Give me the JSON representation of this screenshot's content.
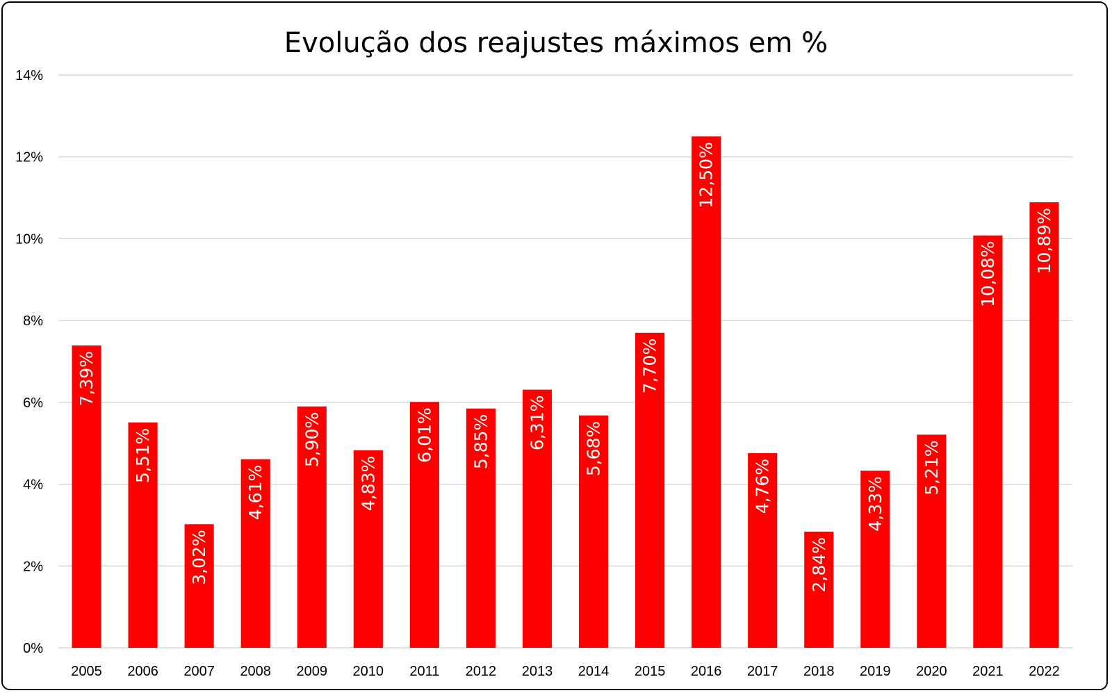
{
  "chart_data": {
    "type": "bar",
    "title": "Evolução dos reajustes máximos em %",
    "xlabel": "",
    "ylabel": "",
    "categories": [
      "2005",
      "2006",
      "2007",
      "2008",
      "2009",
      "2010",
      "2011",
      "2012",
      "2013",
      "2014",
      "2015",
      "2016",
      "2017",
      "2018",
      "2019",
      "2020",
      "2021",
      "2022"
    ],
    "values": [
      7.39,
      5.51,
      3.02,
      4.61,
      5.9,
      4.83,
      6.01,
      5.85,
      6.31,
      5.68,
      7.7,
      12.5,
      4.76,
      2.84,
      4.33,
      5.21,
      10.08,
      10.89
    ],
    "data_labels": [
      "7,39%",
      "5,51%",
      "3,02%",
      "4,61%",
      "5,90%",
      "4,83%",
      "6,01%",
      "5,85%",
      "6,31%",
      "5,68%",
      "7,70%",
      "12,50%",
      "4,76%",
      "2,84%",
      "4,33%",
      "5,21%",
      "10,08%",
      "10,89%"
    ],
    "y_ticks": [
      0,
      2,
      4,
      6,
      8,
      10,
      12,
      14
    ],
    "y_tick_labels": [
      "0%",
      "2%",
      "4%",
      "6%",
      "8%",
      "10%",
      "12%",
      "14%"
    ],
    "ylim": [
      0,
      14
    ],
    "grid": true,
    "legend": "none",
    "colors": {
      "bar": "#ff0000",
      "grid": "#d9d9d9",
      "data_label": "#ffffff"
    }
  }
}
